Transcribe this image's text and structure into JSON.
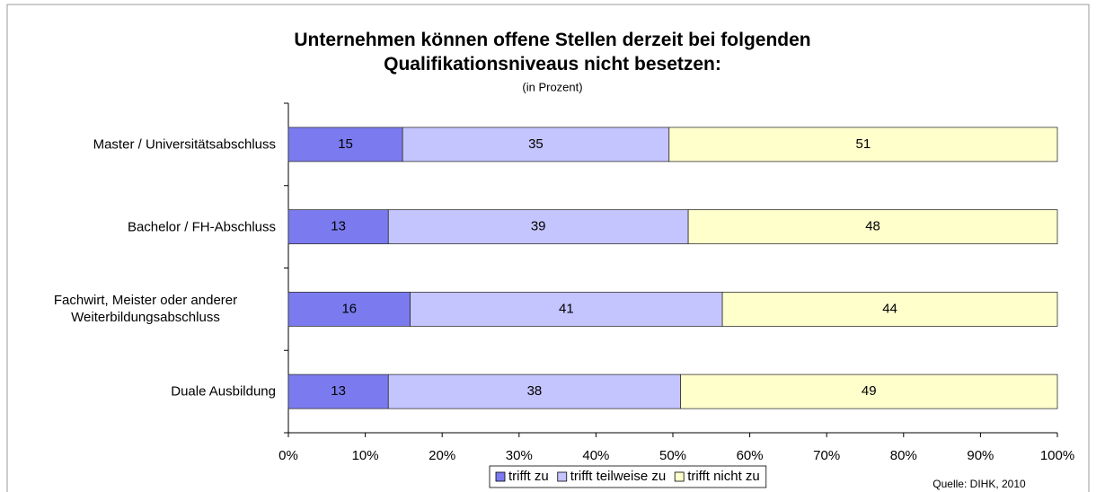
{
  "chart_data": {
    "type": "bar",
    "orientation": "horizontal",
    "stack": "percent",
    "title": "Unternehmen können offene Stellen derzeit bei folgenden Qualifikationsniveaus nicht besetzen:",
    "subtitle": "(in Prozent)",
    "source": "Quelle: DIHK, 2010",
    "categories": [
      "Master / Universitätsabschluss",
      "Bachelor / FH-Abschluss",
      "Fachwirt, Meister oder anderer Weiterbildungsabschluss",
      "Duale Ausbildung"
    ],
    "series": [
      {
        "name": "trifft zu",
        "color": "#7b7bef",
        "values": [
          15,
          13,
          16,
          13
        ]
      },
      {
        "name": "trifft teilweise zu",
        "color": "#c4c4ff",
        "values": [
          35,
          39,
          41,
          38
        ]
      },
      {
        "name": "trifft nicht zu",
        "color": "#ffffcc",
        "values": [
          51,
          48,
          44,
          49
        ]
      }
    ],
    "xlim": [
      0,
      100
    ],
    "xticks": [
      {
        "value": 0,
        "label": "0%"
      },
      {
        "value": 10,
        "label": "10%"
      },
      {
        "value": 20,
        "label": "20%"
      },
      {
        "value": 30,
        "label": "30%"
      },
      {
        "value": 40,
        "label": "40%"
      },
      {
        "value": 50,
        "label": "50%"
      },
      {
        "value": 60,
        "label": "60%"
      },
      {
        "value": 70,
        "label": "70%"
      },
      {
        "value": 80,
        "label": "80%"
      },
      {
        "value": 90,
        "label": "90%"
      },
      {
        "value": 100,
        "label": "100%"
      }
    ],
    "legend": "bottom"
  }
}
